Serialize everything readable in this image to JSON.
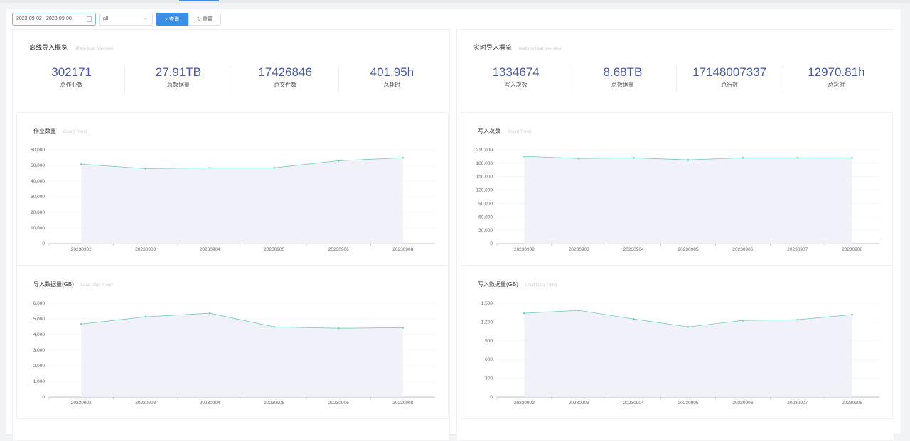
{
  "filters": {
    "date_range": "2023-09-02 - 2023-09-08",
    "select_value": "all",
    "query_label": "查询",
    "reset_label": "重置"
  },
  "offline": {
    "title": "离线导入概览",
    "subtitle": "offline load overview",
    "stats": [
      {
        "value": "302171",
        "label": "总作业数"
      },
      {
        "value": "27.91TB",
        "label": "总数据量"
      },
      {
        "value": "17426846",
        "label": "总文件数"
      },
      {
        "value": "401.95h",
        "label": "总耗时"
      }
    ]
  },
  "realtime": {
    "title": "实时导入概览",
    "subtitle": "realtime load overview",
    "stats": [
      {
        "value": "1334674",
        "label": "写入次数"
      },
      {
        "value": "8.68TB",
        "label": "总数据量"
      },
      {
        "value": "17148007337",
        "label": "总行数"
      },
      {
        "value": "12970.81h",
        "label": "总耗时"
      }
    ]
  },
  "colors": {
    "accent": "#3a8ee6",
    "stat_value": "#4a5a9c",
    "line": "#6fd0b8",
    "area": "#eef0f8"
  },
  "chart_data": [
    {
      "type": "area",
      "title": "作业数量",
      "subtitle": "Count Trend",
      "categories": [
        "20230902",
        "20230903",
        "20230904",
        "20230905",
        "20230906",
        "20230908"
      ],
      "values": [
        50800,
        48000,
        48500,
        48500,
        53000,
        54900
      ],
      "ylim": [
        0,
        60000
      ],
      "yticks": [
        "0",
        "10,000",
        "20,000",
        "30,000",
        "40,000",
        "50,000",
        "60,000"
      ],
      "grid": true
    },
    {
      "type": "area",
      "title": "写入次数",
      "subtitle": "Count Trend",
      "categories": [
        "20230902",
        "20230903",
        "20230904",
        "20230905",
        "20230906",
        "20230907",
        "20230908"
      ],
      "values": [
        195500,
        190600,
        192000,
        187400,
        192000,
        192000,
        192000
      ],
      "ylim": [
        0,
        210000
      ],
      "yticks": [
        "0",
        "30,000",
        "60,000",
        "90,000",
        "120,000",
        "150,000",
        "180,000",
        "210,000"
      ],
      "grid": true
    },
    {
      "type": "area",
      "title": "导入数据量(GB)",
      "subtitle": "Load Data Trend",
      "categories": [
        "20230902",
        "20230903",
        "20230904",
        "20230905",
        "20230906",
        "20230908"
      ],
      "values": [
        4670,
        5130,
        5360,
        4490,
        4400,
        4440
      ],
      "ylim": [
        0,
        6000
      ],
      "yticks": [
        "0",
        "1,000",
        "2,000",
        "3,000",
        "4,000",
        "5,000",
        "6,000"
      ],
      "grid": true
    },
    {
      "type": "area",
      "title": "写入数据量(GB)",
      "subtitle": "Load Data Trend",
      "categories": [
        "20230902",
        "20230903",
        "20230904",
        "20230905",
        "20230906",
        "20230907",
        "20230908"
      ],
      "values": [
        1340,
        1385,
        1248,
        1122,
        1225,
        1237,
        1317
      ],
      "ylim": [
        0,
        1500
      ],
      "yticks": [
        "0",
        "300",
        "600",
        "900",
        "1,200",
        "1,500"
      ],
      "grid": true
    }
  ]
}
